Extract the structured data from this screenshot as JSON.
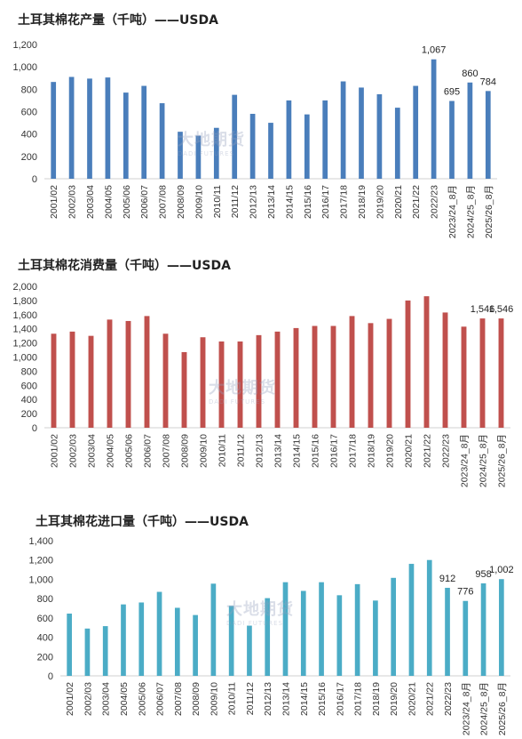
{
  "watermark": {
    "cn": "大地期货",
    "en": "DADI FUTURES"
  },
  "chart_data": [
    {
      "type": "bar",
      "title": "土耳其棉花产量（千吨）——USDA",
      "color": "#4a7ebb",
      "ylim": [
        0,
        1200
      ],
      "yticks": [
        "0",
        "200",
        "400",
        "600",
        "800",
        "1,000",
        "1,200"
      ],
      "categories": [
        "2001/02",
        "2002/03",
        "2003/04",
        "2004/05",
        "2005/06",
        "2006/07",
        "2007/08",
        "2008/09",
        "2009/10",
        "2010/11",
        "2011/12",
        "2012/13",
        "2013/14",
        "2014/15",
        "2015/16",
        "2016/17",
        "2017/18",
        "2018/19",
        "2019/20",
        "2020/21",
        "2021/22",
        "2022/23",
        "2023/24_8月",
        "2024/25_8月",
        "2025/26_8月"
      ],
      "values": [
        865,
        910,
        895,
        905,
        770,
        830,
        675,
        420,
        385,
        455,
        750,
        580,
        500,
        700,
        575,
        700,
        870,
        815,
        755,
        635,
        830,
        1067,
        695,
        860,
        784
      ],
      "data_labels": [
        {
          "index": 21,
          "text": "1,067"
        },
        {
          "index": 22,
          "text": "695"
        },
        {
          "index": 23,
          "text": "860"
        },
        {
          "index": 24,
          "text": "784"
        }
      ]
    },
    {
      "type": "bar",
      "title": "土耳其棉花消费量（千吨）——USDA",
      "color": "#c0504d",
      "ylim": [
        0,
        2000
      ],
      "yticks": [
        "0",
        "200",
        "400",
        "600",
        "800",
        "1,000",
        "1,200",
        "1,400",
        "1,600",
        "1,800",
        "2,000"
      ],
      "categories": [
        "2001/02",
        "2002/03",
        "2003/04",
        "2004/05",
        "2005/06",
        "2006/07",
        "2007/08",
        "2008/09",
        "2009/10",
        "2010/11",
        "2011/12",
        "2012/13",
        "2013/14",
        "2014/15",
        "2015/16",
        "2016/17",
        "2017/18",
        "2018/19",
        "2019/20",
        "2020/21",
        "2021/22",
        "2022/23",
        "2023/24_8月",
        "2024/25_8月",
        "2025/26_8月"
      ],
      "values": [
        1330,
        1360,
        1300,
        1530,
        1510,
        1580,
        1330,
        1070,
        1280,
        1220,
        1220,
        1310,
        1360,
        1410,
        1440,
        1440,
        1580,
        1480,
        1540,
        1800,
        1860,
        1630,
        1430,
        1546,
        1546
      ],
      "data_labels": [
        {
          "index": 23,
          "text": "1,546"
        },
        {
          "index": 24,
          "text": "1,546"
        }
      ]
    },
    {
      "type": "bar",
      "title": "土耳其棉花进口量（千吨）——USDA",
      "color": "#4bacc6",
      "ylim": [
        0,
        1400
      ],
      "yticks": [
        "0",
        "200",
        "400",
        "600",
        "800",
        "1,000",
        "1,200",
        "1,400"
      ],
      "categories": [
        "2001/02",
        "2002/03",
        "2003/04",
        "2004/05",
        "2005/06",
        "2006/07",
        "2007/08",
        "2008/09",
        "2009/10",
        "2010/11",
        "2011/12",
        "2012/13",
        "2013/14",
        "2014/15",
        "2015/16",
        "2016/17",
        "2017/18",
        "2018/19",
        "2019/20",
        "2020/21",
        "2021/22",
        "2022/23",
        "2023/24_8月",
        "2024/25_8月",
        "2025/26_8月"
      ],
      "values": [
        645,
        490,
        515,
        740,
        760,
        870,
        705,
        630,
        955,
        725,
        520,
        805,
        970,
        880,
        970,
        835,
        950,
        780,
        1015,
        1160,
        1200,
        912,
        776,
        958,
        1002
      ],
      "data_labels": [
        {
          "index": 21,
          "text": "912"
        },
        {
          "index": 22,
          "text": "776"
        },
        {
          "index": 23,
          "text": "958"
        },
        {
          "index": 24,
          "text": "1,002"
        }
      ]
    }
  ]
}
